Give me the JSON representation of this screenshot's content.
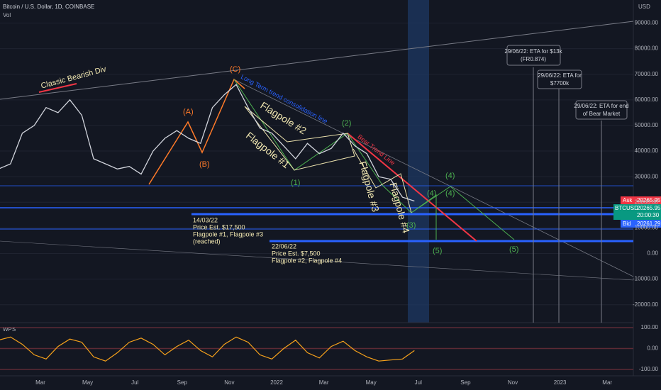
{
  "header": {
    "symbol": "Bitcoin / U.S. Dollar, 1D, COINBASE",
    "volume_label": "Vol",
    "currency": "USD"
  },
  "chart_data": {
    "type": "line",
    "price": {
      "name": "BTCUSD",
      "color": "#d1d4dc",
      "values": [
        33000,
        35000,
        47000,
        50000,
        57000,
        55000,
        60000,
        54000,
        37000,
        35000,
        33000,
        34000,
        31000,
        40000,
        45000,
        48000,
        45000,
        43000,
        57000,
        62000,
        66000,
        57000,
        49000,
        47000,
        42000,
        37000,
        43000,
        39000,
        41000,
        47000,
        42000,
        39000,
        30000,
        29000,
        22000,
        20500
      ]
    },
    "ylim": [
      -27000,
      99000
    ],
    "yticks": [
      {
        "value": 90000,
        "label": "90000.00"
      },
      {
        "value": 80000,
        "label": "80000.00"
      },
      {
        "value": 70000,
        "label": "70000.00"
      },
      {
        "value": 60000,
        "label": "60000.00"
      },
      {
        "value": 50000,
        "label": "50000.00"
      },
      {
        "value": 40000,
        "label": "40000.00"
      },
      {
        "value": 30000,
        "label": "30000.00"
      },
      {
        "value": 20000,
        "label": "20000.00"
      },
      {
        "value": 10000,
        "label": "10000.00"
      },
      {
        "value": 0,
        "label": "0.00"
      },
      {
        "value": -10000,
        "label": "-10000.00"
      },
      {
        "value": -20000,
        "label": "-20000.00"
      }
    ],
    "categories": [
      "Mar",
      "May",
      "Jul",
      "Sep",
      "Nov",
      "2022",
      "Mar",
      "May",
      "Jul",
      "Sep",
      "Nov",
      "2023",
      "Mar"
    ],
    "indicator": {
      "name": "WPS",
      "color": "#f7a21b",
      "values": [
        40,
        55,
        20,
        -30,
        -50,
        10,
        45,
        30,
        -40,
        -60,
        -20,
        30,
        50,
        20,
        -30,
        10,
        40,
        -10,
        -40,
        20,
        55,
        30,
        -30,
        -50,
        0,
        40,
        -20,
        -45,
        10,
        35,
        -10,
        -40,
        -60,
        -55,
        -50,
        -10
      ],
      "ylim": [
        -100,
        100
      ],
      "yticks": [
        {
          "value": 100,
          "label": "100.00"
        },
        {
          "value": 0,
          "label": "0.00"
        },
        {
          "value": -100,
          "label": "-100.00"
        }
      ]
    }
  },
  "annotations": {
    "bearish_div": "Classic Bearish Div",
    "wave_c": "(C)",
    "wave_a": "(A)",
    "wave_b": "(B)",
    "consolidation": "Long Term trend consolidation line",
    "flagpole2": "Flagpole #2",
    "flagpole1": "Flagpole #1",
    "wave2": "(2)",
    "bear_trend": "Bear Trend Line",
    "wave1": "(1)",
    "flagpole3": "Flagpole #3",
    "flagpole4": "Flagpole #4",
    "wave3": "(3)",
    "wave4a": "(4)",
    "wave4b": "(4)",
    "wave4c": "(4)",
    "wave5a": "(5)",
    "wave5b": "(5)",
    "note1": [
      "14/03/22",
      "Price Est. $17,500",
      "Flagpole #1, Flagpole #3",
      "(reached)"
    ],
    "note2": [
      "22/06/22",
      "Price Est. $7,500",
      "Flagpole #2, Flagpole #4"
    ],
    "eta1": [
      "29/06/22: ETA for $13k",
      "(FR0.874)"
    ],
    "eta2": [
      "29/06/22: ETA for",
      "$7700k"
    ],
    "eta3": [
      "29/06/22: ETA for end",
      "of Bear Market"
    ]
  },
  "price_labels": {
    "ask_tag": "Ask",
    "ask": "20265.95",
    "symbol": "BTCUSD",
    "last": "20265.95",
    "countdown": "20:00:30",
    "bid_tag": "Bid",
    "bid": "20261.29"
  }
}
